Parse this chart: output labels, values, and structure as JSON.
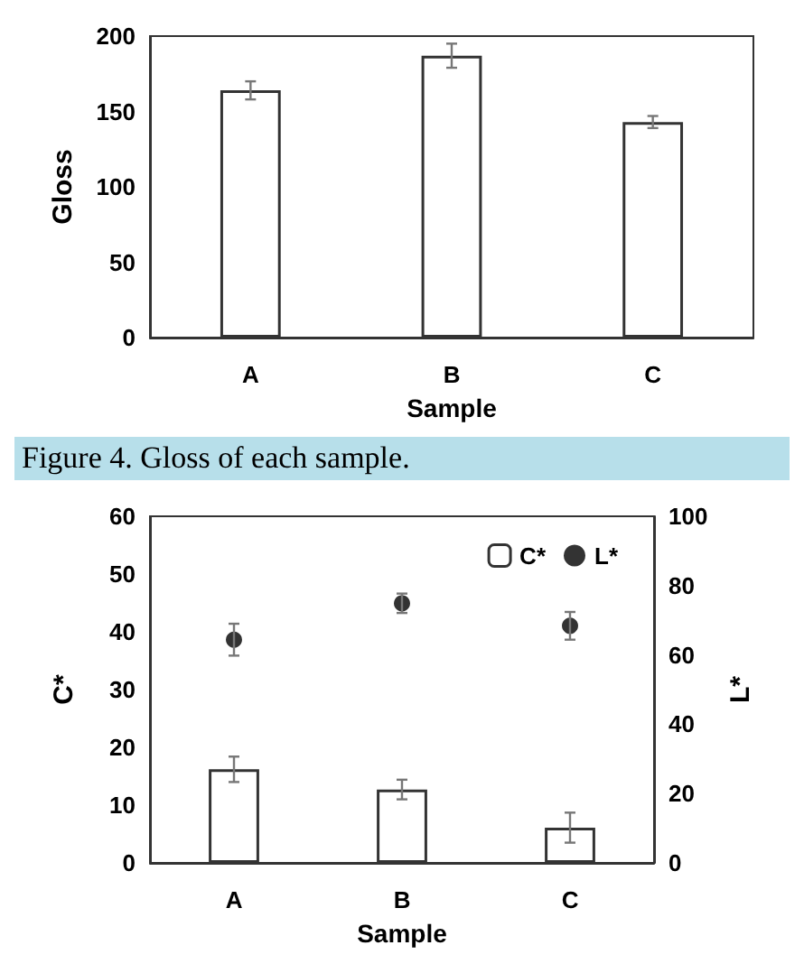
{
  "chart_data": [
    {
      "type": "bar",
      "xlabel": "Sample",
      "ylabel": "Gloss",
      "categories": [
        "A",
        "B",
        "C"
      ],
      "series": [
        {
          "color": "#ffffff",
          "values": [
            164,
            187,
            143
          ],
          "errors": [
            6,
            8,
            4
          ]
        }
      ],
      "ylim": [
        0,
        200
      ],
      "yticks": [
        0,
        50,
        100,
        150,
        200
      ],
      "legend": false,
      "annotations": [
        "Figure 4. Gloss of each sample."
      ]
    },
    {
      "type": "bar",
      "xlabel": "Sample",
      "ylabel": "C*",
      "y2label": "L*",
      "categories": [
        "A",
        "B",
        "C"
      ],
      "series": [
        {
          "name": "C*",
          "color": "#ffffff",
          "values": [
            16.2,
            12.7,
            6.1
          ],
          "errors": [
            2.2,
            1.7,
            2.6
          ]
        },
        {
          "name": "L*",
          "type": "scatter",
          "axis": "y2",
          "color": "#000000",
          "marker": "circle",
          "x": [
            "A",
            "B",
            "C"
          ],
          "values": [
            64.4,
            74.9,
            68.4
          ],
          "errors": [
            4.6,
            2.8,
            4
          ]
        }
      ],
      "ylim": [
        0,
        60
      ],
      "yticks": [
        0,
        10,
        20,
        30,
        40,
        50,
        60
      ],
      "y2lim": [
        0,
        100
      ],
      "y2ticks": [
        0,
        20,
        40,
        60,
        80,
        100
      ],
      "legend": "top right"
    }
  ]
}
